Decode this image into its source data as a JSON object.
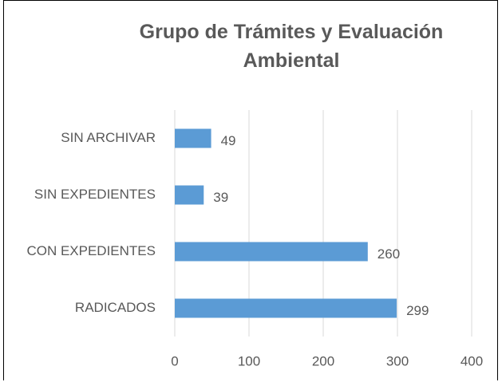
{
  "chart_data": {
    "type": "bar",
    "orientation": "horizontal",
    "title": "Grupo de Trámites y Evaluación Ambiental",
    "categories": [
      "SIN ARCHIVAR",
      "SIN EXPEDIENTES",
      "CON EXPEDIENTES",
      "RADICADOS"
    ],
    "values": [
      49,
      39,
      260,
      299
    ],
    "color": "#5b9bd5",
    "xlim": [
      0,
      400
    ],
    "xticks": [
      0,
      100,
      200,
      300,
      400
    ],
    "grid": true
  }
}
